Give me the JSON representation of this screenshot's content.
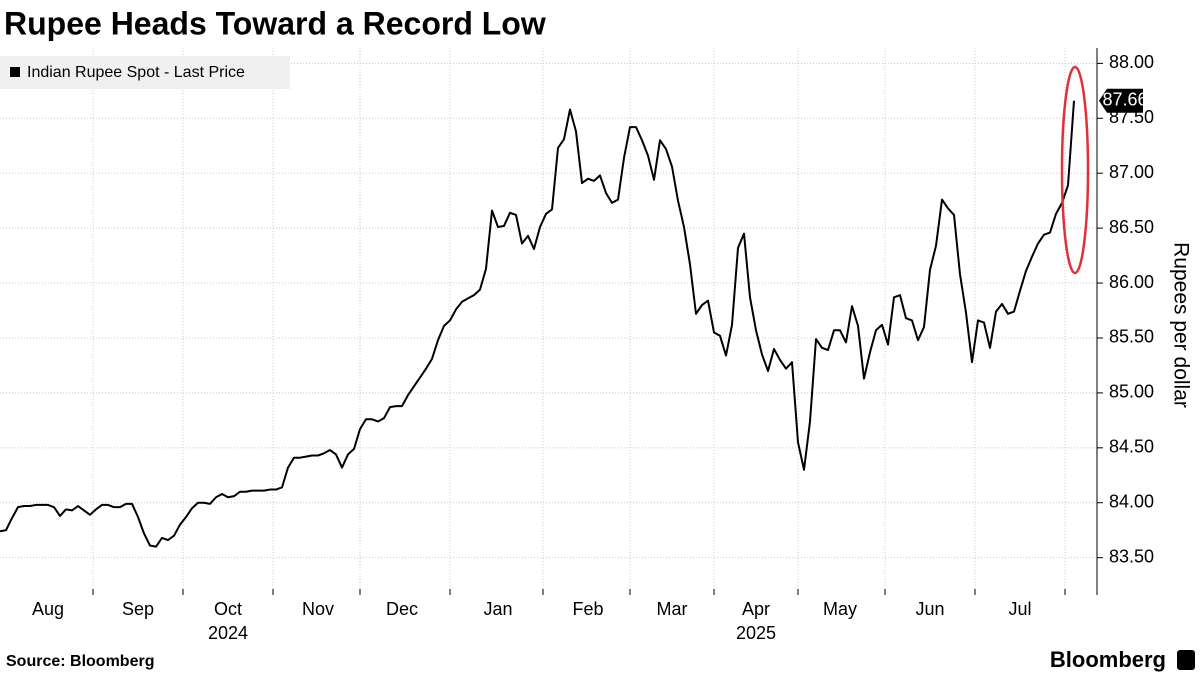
{
  "chart_data": {
    "type": "line",
    "title": "Rupee Heads Toward a Record Low",
    "y_label": "Rupees per dollar",
    "source": "Source: Bloomberg",
    "brand": "Bloomberg",
    "x_group_labels": [
      "2024",
      "2025"
    ],
    "categories": [
      null,
      null,
      null,
      null,
      null,
      null,
      null,
      null,
      "Aug",
      null,
      null,
      null,
      null,
      null,
      null,
      null,
      null,
      null,
      null,
      null,
      null,
      null,
      null,
      "Sep",
      null,
      null,
      null,
      null,
      null,
      null,
      null,
      null,
      null,
      null,
      null,
      null,
      null,
      null,
      "Oct",
      null,
      null,
      null,
      null,
      null,
      null,
      null,
      null,
      null,
      null,
      null,
      null,
      null,
      null,
      "Nov",
      null,
      null,
      null,
      null,
      null,
      null,
      null,
      null,
      null,
      null,
      null,
      null,
      null,
      "Dec",
      null,
      null,
      null,
      null,
      null,
      null,
      null,
      null,
      null,
      null,
      null,
      null,
      null,
      null,
      null,
      "Jan",
      null,
      null,
      null,
      null,
      null,
      null,
      null,
      null,
      null,
      null,
      null,
      null,
      null,
      null,
      "Feb",
      null,
      null,
      null,
      null,
      null,
      null,
      null,
      null,
      null,
      null,
      null,
      null,
      null,
      "Mar",
      null,
      null,
      null,
      null,
      null,
      null,
      null,
      null,
      null,
      null,
      null,
      null,
      null,
      "Apr",
      null,
      null,
      null,
      null,
      null,
      null,
      null,
      null,
      null,
      null,
      null,
      null,
      null,
      "May",
      null,
      null,
      null,
      null,
      null,
      null,
      null,
      null,
      null,
      null,
      null,
      null,
      null,
      null,
      "Jun",
      null,
      null,
      null,
      null,
      null,
      null,
      null,
      null,
      null,
      null,
      null,
      null,
      null,
      null,
      "Jul",
      null,
      null,
      null,
      null,
      null,
      null,
      null,
      null,
      null
    ],
    "series": [
      {
        "name": "Indian Rupee Spot - Last Price",
        "color": "#000000",
        "values": [
          83.74,
          83.75,
          83.86,
          83.96,
          83.97,
          83.97,
          83.98,
          83.98,
          83.98,
          83.96,
          83.88,
          83.94,
          83.93,
          83.97,
          83.93,
          83.89,
          83.94,
          83.98,
          83.98,
          83.96,
          83.96,
          83.99,
          83.99,
          83.87,
          83.72,
          83.61,
          83.6,
          83.68,
          83.66,
          83.7,
          83.8,
          83.87,
          83.95,
          84.0,
          84.0,
          83.99,
          84.05,
          84.08,
          84.05,
          84.06,
          84.1,
          84.1,
          84.11,
          84.11,
          84.11,
          84.12,
          84.12,
          84.14,
          84.32,
          84.41,
          84.41,
          84.42,
          84.43,
          84.43,
          84.45,
          84.48,
          84.44,
          84.32,
          84.44,
          84.49,
          84.67,
          84.76,
          84.76,
          84.74,
          84.77,
          84.87,
          84.88,
          84.88,
          84.98,
          85.06,
          85.14,
          85.22,
          85.31,
          85.48,
          85.61,
          85.66,
          85.76,
          85.83,
          85.86,
          85.89,
          85.94,
          86.13,
          86.66,
          86.51,
          86.52,
          86.64,
          86.62,
          86.36,
          86.43,
          86.31,
          86.51,
          86.63,
          86.67,
          87.23,
          87.31,
          87.58,
          87.38,
          86.91,
          86.95,
          86.93,
          86.98,
          86.82,
          86.73,
          86.76,
          87.14,
          87.42,
          87.42,
          87.3,
          87.16,
          86.94,
          87.3,
          87.22,
          87.06,
          86.75,
          86.51,
          86.17,
          85.72,
          85.8,
          85.84,
          85.55,
          85.52,
          85.34,
          85.62,
          86.32,
          86.45,
          85.87,
          85.57,
          85.35,
          85.2,
          85.4,
          85.3,
          85.22,
          85.28,
          84.55,
          84.3,
          84.74,
          85.49,
          85.41,
          85.39,
          85.57,
          85.57,
          85.46,
          85.79,
          85.61,
          85.13,
          85.37,
          85.57,
          85.62,
          85.44,
          85.87,
          85.89,
          85.68,
          85.66,
          85.48,
          85.6,
          86.12,
          86.34,
          86.76,
          86.68,
          86.62,
          86.08,
          85.73,
          85.28,
          85.66,
          85.64,
          85.41,
          85.74,
          85.81,
          85.72,
          85.74,
          85.93,
          86.11,
          86.24,
          86.36,
          86.44,
          86.46,
          86.63,
          86.73,
          86.89,
          87.66
        ]
      }
    ],
    "last_value_label": true,
    "ylim": [
      83.16,
      88.14
    ],
    "yticks": [
      {
        "value": 83.5,
        "label": "83.50"
      },
      {
        "value": 84,
        "label": "84.00"
      },
      {
        "value": 84.5,
        "label": "84.50"
      },
      {
        "value": 85,
        "label": "85.00"
      },
      {
        "value": 85.5,
        "label": "85.50"
      },
      {
        "value": 86,
        "label": "86.00"
      },
      {
        "value": 86.5,
        "label": "86.50"
      },
      {
        "value": 87,
        "label": "87.00"
      },
      {
        "value": 87.5,
        "label": "87.50"
      },
      {
        "value": 88,
        "label": "88.00"
      }
    ],
    "grid": true,
    "y_axis_side": "right",
    "legend": "top-left"
  }
}
